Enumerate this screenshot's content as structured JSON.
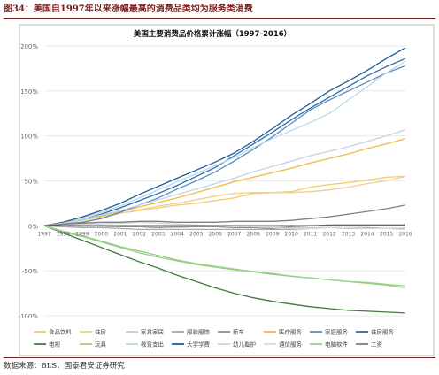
{
  "figure": {
    "header": "图34：美国自1997年以来涨幅最高的消费品类均为服务类消费",
    "source": "数据来源：BLS、国泰君安证券研究"
  },
  "chart_data": {
    "type": "line",
    "title": "美国主要消费品价格累计涨幅（1997-2016）",
    "xlabel": "",
    "ylabel": "",
    "x_ticks": [
      "1997",
      "1998",
      "1999",
      "2000",
      "2001",
      "2002",
      "2003",
      "2004",
      "2005",
      "2006",
      "2007",
      "2008",
      "2009",
      "2010",
      "2011",
      "2012",
      "2013",
      "2014",
      "2015",
      "2016"
    ],
    "x": [
      1997,
      1998,
      1999,
      2000,
      2001,
      2002,
      2003,
      2004,
      2005,
      2006,
      2007,
      2008,
      2009,
      2010,
      2011,
      2012,
      2013,
      2014,
      2015,
      2016
    ],
    "y_ticks": [
      -100,
      -50,
      0,
      50,
      100,
      150,
      200
    ],
    "y_tick_labels": [
      "-100%",
      "-50%",
      "0%",
      "50%",
      "100%",
      "150%",
      "200%"
    ],
    "ylim": [
      -100,
      200
    ],
    "grid": "horizontal",
    "legend_position": "bottom",
    "series": [
      {
        "name": "食品饮料",
        "color": "#f2c96b",
        "values": [
          0,
          4,
          7,
          10,
          14,
          17,
          20,
          23,
          25,
          28,
          31,
          36,
          37,
          38,
          43,
          46,
          48,
          51,
          54,
          55
        ]
      },
      {
        "name": "住房",
        "color": "#f0ce90",
        "values": [
          0,
          3,
          6,
          10,
          14,
          18,
          22,
          25,
          29,
          33,
          36,
          37,
          37,
          37,
          38,
          40,
          43,
          47,
          50,
          55
        ]
      },
      {
        "name": "家具家居",
        "color": "#c8c8c8",
        "values": [
          0,
          -1,
          -1,
          -1,
          -1,
          -1,
          -1,
          -2,
          -1,
          0,
          0,
          -1,
          -1,
          -2,
          -2,
          -2,
          -3,
          -3,
          -3,
          -3
        ]
      },
      {
        "name": "服装服饰",
        "color": "#a8a8a8",
        "values": [
          0,
          -1,
          -2,
          -2,
          -3,
          -4,
          -4,
          -4,
          -4,
          -4,
          -4,
          -4,
          -4,
          -4,
          -3,
          -2,
          -2,
          -2,
          -3,
          -3
        ]
      },
      {
        "name": "新车",
        "color": "#8c8c8c",
        "values": [
          0,
          0,
          0,
          0,
          -1,
          -1,
          -2,
          -1,
          -1,
          -1,
          -2,
          -2,
          -3,
          -1,
          0,
          1,
          1,
          1,
          1,
          1
        ]
      },
      {
        "name": "医疗服务",
        "color": "#f5b83d",
        "values": [
          0,
          3,
          7,
          11,
          16,
          21,
          26,
          31,
          37,
          43,
          49,
          54,
          59,
          64,
          70,
          75,
          80,
          86,
          91,
          97
        ]
      },
      {
        "name": "家庭服务",
        "color": "#5b8bbf",
        "values": [
          0,
          2,
          4,
          8,
          15,
          23,
          31,
          41,
          50,
          60,
          72,
          85,
          99,
          114,
          129,
          140,
          150,
          160,
          170,
          178
        ]
      },
      {
        "name": "住房服务",
        "color": "#2f6aa8",
        "values": [
          0,
          3,
          7,
          13,
          20,
          28,
          36,
          45,
          55,
          65,
          78,
          91,
          104,
          118,
          131,
          143,
          155,
          167,
          177,
          186
        ]
      },
      {
        "name": "电视",
        "color": "#3f7a3f",
        "values": [
          0,
          -8,
          -16,
          -24,
          -32,
          -40,
          -47,
          -55,
          -62,
          -69,
          -75,
          -80,
          -84,
          -87,
          -90,
          -92,
          -94,
          -95,
          -96,
          -97
        ]
      },
      {
        "name": "玩具",
        "color": "#9ccf7e",
        "values": [
          0,
          -6,
          -11,
          -17,
          -23,
          -28,
          -33,
          -38,
          -42,
          -45,
          -48,
          -51,
          -54,
          -56,
          -58,
          -60,
          -62,
          -64,
          -66,
          -69
        ]
      },
      {
        "name": "教育支出",
        "color": "#b5dbe9",
        "values": [
          0,
          4,
          9,
          15,
          22,
          31,
          40,
          49,
          58,
          67,
          76,
          87,
          97,
          106,
          115,
          125,
          140,
          155,
          170,
          183
        ]
      },
      {
        "name": "大学学费",
        "color": "#1f5d9c",
        "values": [
          0,
          4,
          10,
          17,
          25,
          35,
          44,
          53,
          62,
          71,
          81,
          94,
          108,
          123,
          136,
          150,
          161,
          173,
          186,
          198
        ]
      },
      {
        "name": "幼儿看护",
        "color": "#c2d5e6",
        "values": [
          0,
          3,
          7,
          12,
          17,
          23,
          29,
          35,
          41,
          47,
          53,
          60,
          66,
          72,
          78,
          83,
          88,
          94,
          100,
          107
        ]
      },
      {
        "name": "通信服务",
        "color": "#d9d9d9",
        "values": [
          0,
          1,
          2,
          2,
          3,
          4,
          3,
          2,
          1,
          0,
          0,
          -1,
          -2,
          -3,
          -3,
          -2,
          -2,
          -3,
          -3,
          -4
        ]
      },
      {
        "name": "电脑软件",
        "color": "#8fd18a",
        "values": [
          0,
          -7,
          -12,
          -18,
          -24,
          -30,
          -35,
          -39,
          -43,
          -46,
          -49,
          -51,
          -53,
          -56,
          -58,
          -60,
          -62,
          -63,
          -65,
          -67
        ]
      },
      {
        "name": "工资",
        "color": "#7f7f7f",
        "values": [
          0,
          2,
          3,
          4,
          4,
          5,
          5,
          4,
          4,
          4,
          5,
          5,
          5,
          6,
          8,
          10,
          13,
          16,
          19,
          23
        ]
      }
    ]
  }
}
